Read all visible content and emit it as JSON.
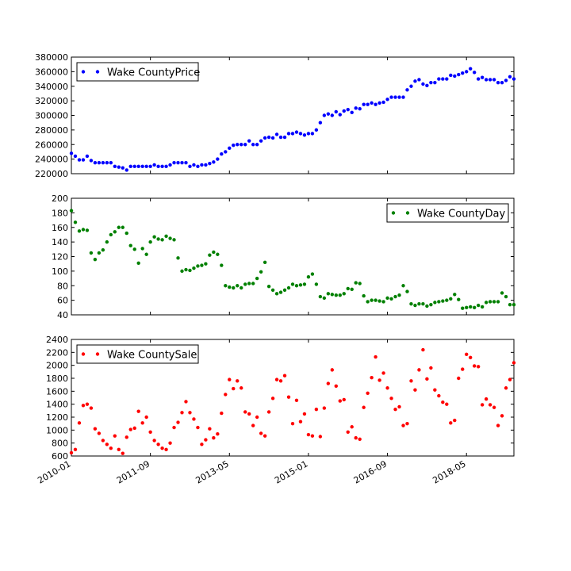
{
  "chart_data": [
    {
      "type": "scatter",
      "legend": "Wake CountyPrice",
      "legend_position": "top-left",
      "color": "#0000ff",
      "ylim": [
        220000,
        380000
      ],
      "yticks": [
        220000,
        240000,
        260000,
        280000,
        300000,
        320000,
        340000,
        360000,
        380000
      ],
      "values": [
        248000,
        244000,
        239000,
        239000,
        244000,
        238000,
        235000,
        235000,
        235000,
        235000,
        235000,
        230000,
        229000,
        228000,
        225000,
        230000,
        230000,
        230000,
        230000,
        230000,
        230000,
        232000,
        230000,
        230000,
        230000,
        232000,
        235000,
        235000,
        235000,
        235000,
        230000,
        232000,
        230000,
        232000,
        232000,
        234000,
        236000,
        240000,
        247000,
        250000,
        255000,
        259000,
        260000,
        260000,
        260000,
        265000,
        260000,
        260000,
        265000,
        269000,
        270000,
        269000,
        274000,
        270000,
        270000,
        275000,
        275000,
        277000,
        275000,
        273000,
        275000,
        275000,
        280000,
        290000,
        300000,
        302000,
        300000,
        305000,
        301000,
        306000,
        308000,
        304000,
        310000,
        309000,
        315000,
        315000,
        317000,
        315000,
        317000,
        318000,
        322000,
        325000,
        325000,
        325000,
        325000,
        335000,
        340000,
        347000,
        349000,
        343000,
        341000,
        345000,
        345000,
        350000,
        350000,
        350000,
        355000,
        354000,
        356000,
        358000,
        360000,
        364000,
        359000,
        350000,
        352000,
        349000,
        349000,
        349000,
        345000,
        345000,
        348000,
        353000,
        350000
      ]
    },
    {
      "type": "scatter",
      "legend": "Wake CountyDay",
      "legend_position": "top-right",
      "color": "#008000",
      "ylim": [
        40,
        200
      ],
      "yticks": [
        40,
        60,
        80,
        100,
        120,
        140,
        160,
        180,
        200
      ],
      "values": [
        183,
        167,
        155,
        157,
        156,
        125,
        116,
        125,
        129,
        140,
        150,
        154,
        160,
        160,
        152,
        135,
        130,
        111,
        131,
        123,
        140,
        147,
        144,
        143,
        148,
        145,
        143,
        118,
        100,
        102,
        101,
        104,
        107,
        108,
        110,
        122,
        126,
        123,
        108,
        80,
        78,
        77,
        80,
        77,
        82,
        83,
        83,
        90,
        99,
        112,
        79,
        74,
        69,
        71,
        74,
        77,
        82,
        80,
        81,
        82,
        92,
        96,
        82,
        65,
        63,
        69,
        68,
        67,
        67,
        69,
        76,
        75,
        84,
        83,
        66,
        58,
        60,
        60,
        59,
        58,
        63,
        62,
        65,
        67,
        80,
        72,
        55,
        53,
        55,
        55,
        52,
        54,
        57,
        58,
        59,
        60,
        62,
        68,
        61,
        49,
        50,
        51,
        50,
        53,
        51,
        57,
        58,
        58,
        58,
        70,
        65,
        54,
        54
      ]
    },
    {
      "type": "scatter",
      "legend": "Wake CountySale",
      "legend_position": "top-left",
      "color": "#ff0000",
      "ylim": [
        600,
        2400
      ],
      "yticks": [
        600,
        800,
        1000,
        1200,
        1400,
        1600,
        1800,
        2000,
        2200,
        2400
      ],
      "values": [
        650,
        700,
        1110,
        1380,
        1400,
        1340,
        1020,
        950,
        840,
        780,
        720,
        910,
        700,
        640,
        890,
        1010,
        1030,
        1290,
        1110,
        1200,
        970,
        840,
        780,
        720,
        700,
        800,
        1040,
        1120,
        1270,
        1440,
        1270,
        1170,
        1040,
        780,
        850,
        1020,
        880,
        940,
        1260,
        1550,
        1780,
        1640,
        1760,
        1650,
        1280,
        1250,
        1070,
        1200,
        950,
        910,
        1280,
        1490,
        1780,
        1760,
        1840,
        1510,
        1100,
        1460,
        1130,
        1250,
        930,
        910,
        1320,
        900,
        1340,
        1720,
        1930,
        1680,
        1450,
        1470,
        970,
        1050,
        880,
        860,
        1350,
        1570,
        1810,
        2130,
        1770,
        1880,
        1650,
        1490,
        1320,
        1360,
        1070,
        1100,
        1760,
        1620,
        1930,
        2240,
        1790,
        1960,
        1620,
        1530,
        1430,
        1400,
        1110,
        1150,
        1800,
        1940,
        2170,
        2120,
        1990,
        1980,
        1390,
        1480,
        1390,
        1350,
        1070,
        1220,
        1650,
        1780,
        2040
      ]
    }
  ],
  "x_axis": {
    "n_points": 113,
    "start": "2010-01",
    "tick_labels": [
      "2010-01",
      "2011-09",
      "2013-05",
      "2015-01",
      "2016-09",
      "2018-05"
    ],
    "tick_month_index": [
      0,
      20,
      40,
      60,
      80,
      100
    ]
  }
}
